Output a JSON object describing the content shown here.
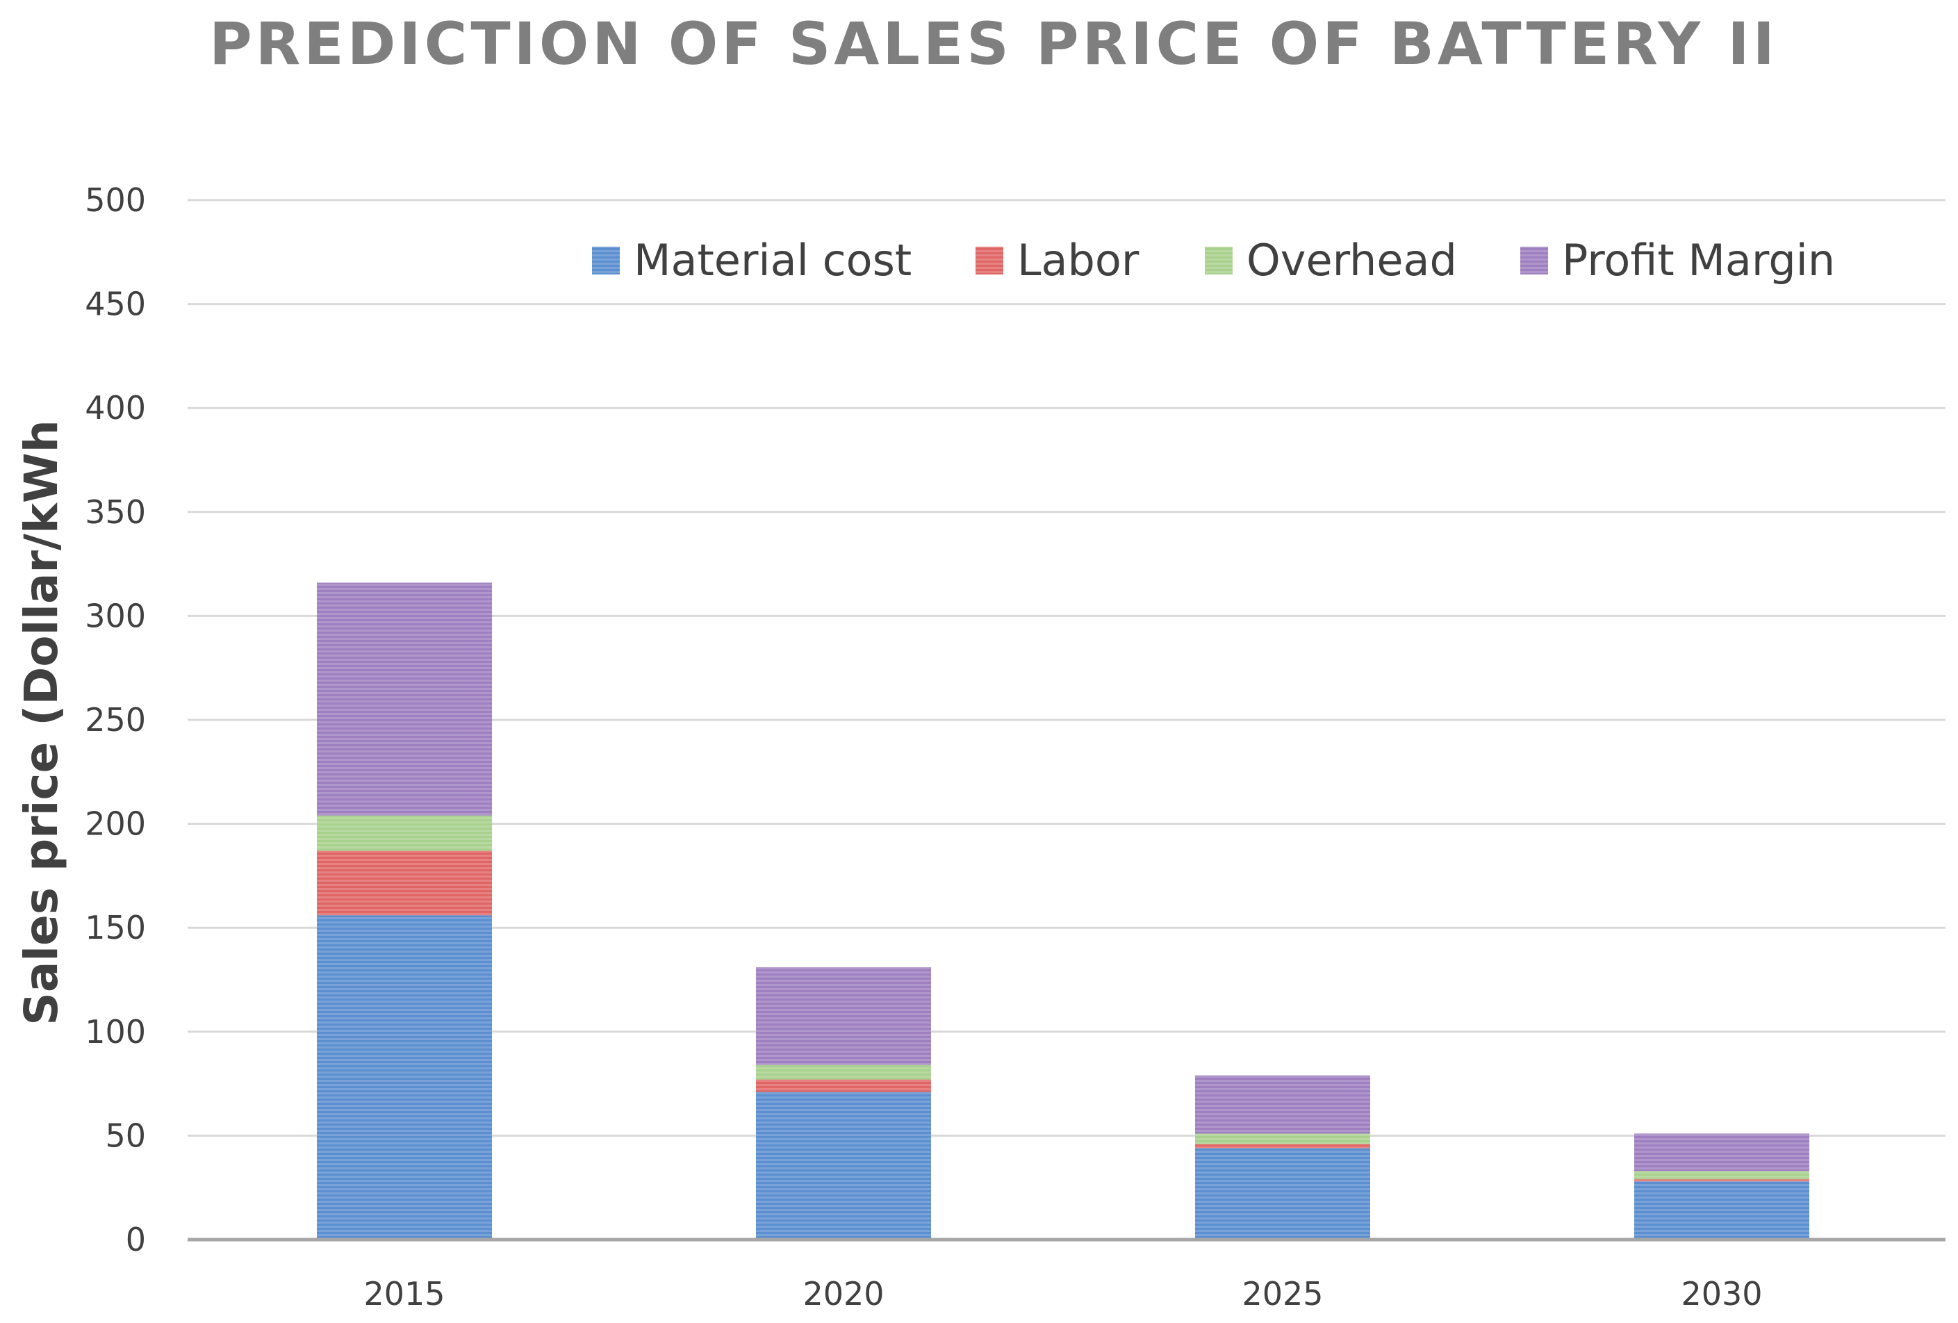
{
  "chart_data": {
    "type": "bar",
    "stacked": true,
    "title": "PREDICTION OF SALES PRICE OF BATTERY II",
    "xlabel": "",
    "ylabel": "Sales price (Dollar/kWh",
    "ylim": [
      0,
      500
    ],
    "yticks": [
      0,
      50,
      100,
      150,
      200,
      250,
      300,
      350,
      400,
      450,
      500
    ],
    "categories": [
      "2015",
      "2020",
      "2025",
      "2030"
    ],
    "series": [
      {
        "name": "Material cost",
        "color": "#5b8fd0",
        "values": [
          156,
          71,
          44,
          28
        ]
      },
      {
        "name": "Labor",
        "color": "#e06666",
        "values": [
          31,
          6,
          2,
          1
        ]
      },
      {
        "name": "Overhead",
        "color": "#a9d18e",
        "values": [
          17,
          7,
          5,
          4
        ]
      },
      {
        "name": "Profit Margin",
        "color": "#9e7fc0",
        "values": [
          112,
          47,
          28,
          18
        ]
      }
    ],
    "grid": true,
    "legend_position": "top"
  }
}
